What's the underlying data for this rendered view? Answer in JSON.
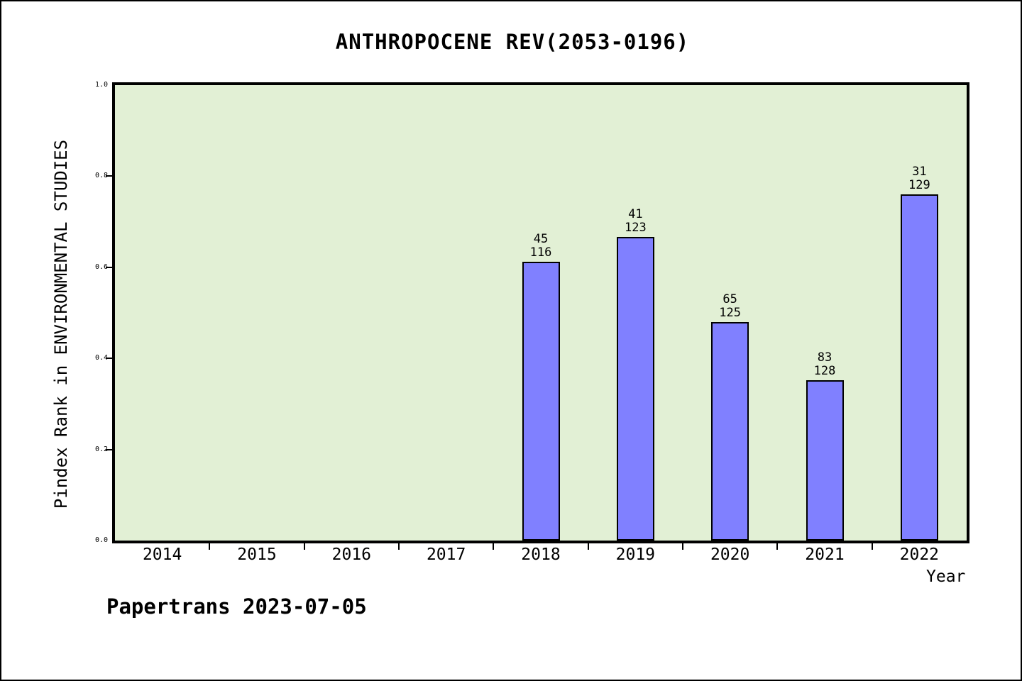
{
  "page": {
    "footer": "Papertrans 2023-07-05"
  },
  "chart_data": {
    "type": "bar",
    "title": "ANTHROPOCENE REV(2053-0196)",
    "xlabel": "Year",
    "ylabel": "Pindex Rank in ENVIRONMENTAL STUDIES",
    "ylim": [
      0.0,
      1.0
    ],
    "yticks": [
      "0.0",
      "0.2",
      "0.4",
      "0.6",
      "0.8",
      "1.0"
    ],
    "categories": [
      "2014",
      "2015",
      "2016",
      "2017",
      "2018",
      "2019",
      "2020",
      "2021",
      "2022"
    ],
    "bars": [
      {
        "year": "2018",
        "rank": "45",
        "total": "116",
        "value": 0.612
      },
      {
        "year": "2019",
        "rank": "41",
        "total": "123",
        "value": 0.667
      },
      {
        "year": "2020",
        "rank": "65",
        "total": "125",
        "value": 0.48
      },
      {
        "year": "2021",
        "rank": "83",
        "total": "128",
        "value": 0.352
      },
      {
        "year": "2022",
        "rank": "31",
        "total": "129",
        "value": 0.76
      }
    ],
    "colors": {
      "bar_fill": "#8080FF",
      "bar_edge": "#000000",
      "plot_background": "#E2F0D5",
      "page_background": "#FFFFFF",
      "text": "#000000"
    },
    "legend": "none",
    "grid": "off"
  }
}
